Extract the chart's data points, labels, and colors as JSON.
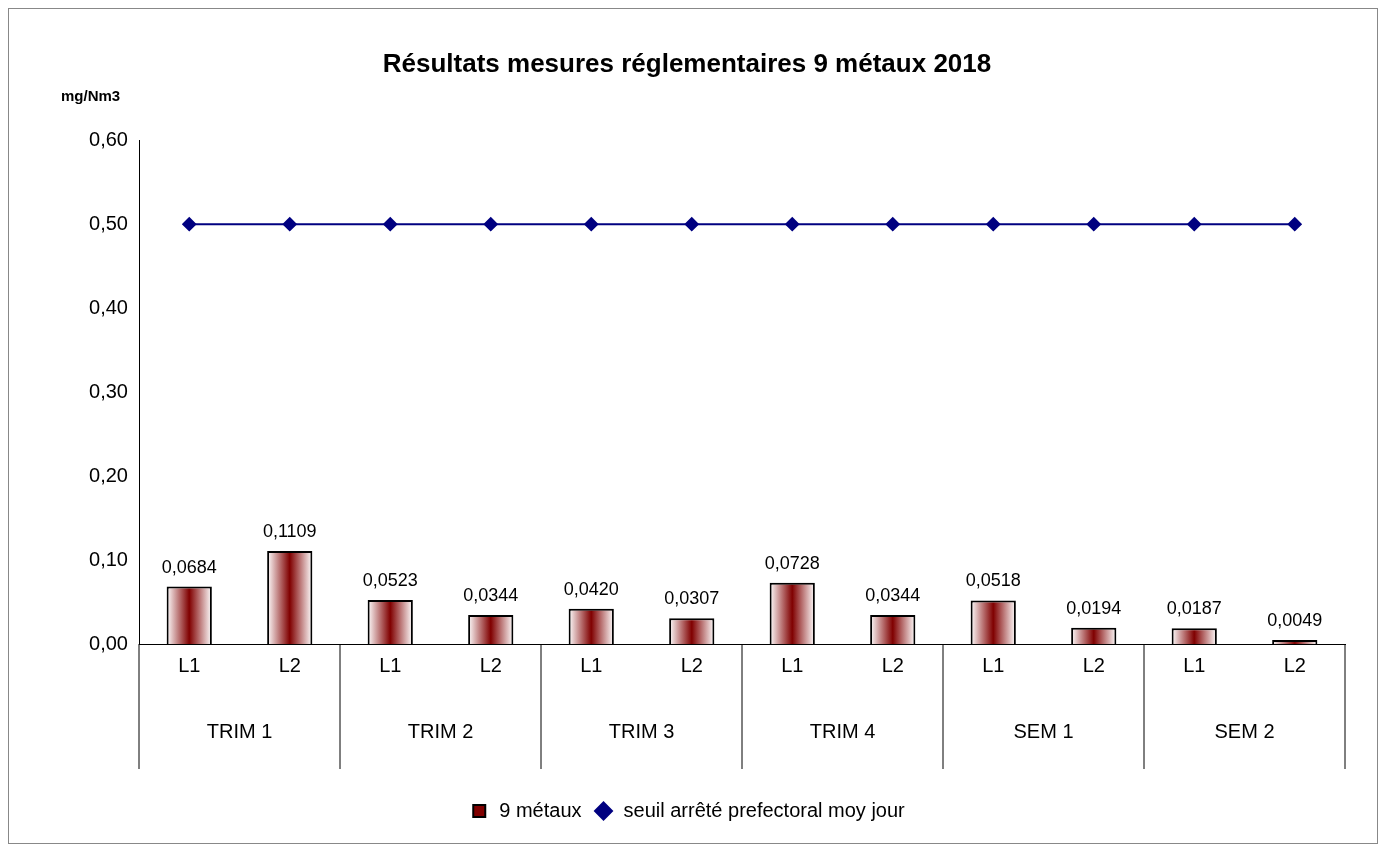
{
  "chart_data": {
    "type": "bar",
    "title": "Résultats mesures réglementaires 9 métaux 2018",
    "ylabel": "mg/Nm3",
    "categories": [
      "L1",
      "L2",
      "L1",
      "L2",
      "L1",
      "L2",
      "L1",
      "L2",
      "L1",
      "L2",
      "L1",
      "L2"
    ],
    "annotations": [
      "TRIM 1",
      "TRIM 2",
      "TRIM 3",
      "TRIM 4",
      "SEM 1",
      "SEM 2"
    ],
    "series": [
      {
        "name": "9 métaux",
        "type": "bar",
        "color": "#800000",
        "values": [
          0.0684,
          0.1109,
          0.0523,
          0.0344,
          0.042,
          0.0307,
          0.0728,
          0.0344,
          0.0518,
          0.0194,
          0.0187,
          0.0049
        ],
        "value_labels": [
          "0,0684",
          "0,1109",
          "0,0523",
          "0,0344",
          "0,0420",
          "0,0307",
          "0,0728",
          "0,0344",
          "0,0518",
          "0,0194",
          "0,0187",
          "0,0049"
        ]
      },
      {
        "name": "seuil arrêté prefectoral moy jour",
        "type": "line",
        "color": "#000080",
        "marker": "diamond",
        "values": [
          0.5,
          0.5,
          0.5,
          0.5,
          0.5,
          0.5,
          0.5,
          0.5,
          0.5,
          0.5,
          0.5,
          0.5
        ]
      }
    ],
    "ylim": [
      0,
      0.6
    ],
    "yticks": [
      {
        "value": 0,
        "label": "0,00"
      },
      {
        "value": 0.1,
        "label": "0,10"
      },
      {
        "value": 0.2,
        "label": "0,20"
      },
      {
        "value": 0.3,
        "label": "0,30"
      },
      {
        "value": 0.4,
        "label": "0,40"
      },
      {
        "value": 0.5,
        "label": "0,50"
      },
      {
        "value": 0.6,
        "label": "0,60"
      }
    ],
    "grid": false,
    "legend": "bottom"
  }
}
